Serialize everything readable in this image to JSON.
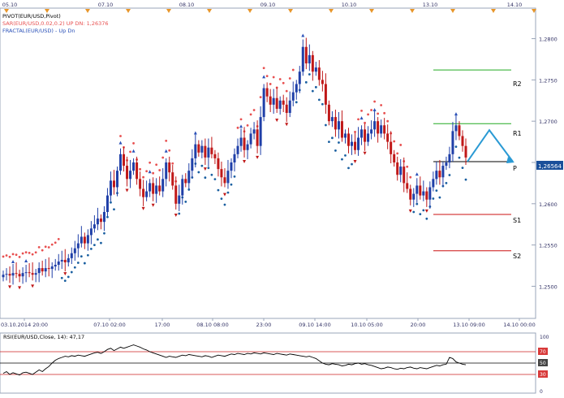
{
  "colors": {
    "up_candle": "#1f3fa8",
    "down_candle": "#c01818",
    "sar_up": "#1a5fa0",
    "sar_down": "#e85050",
    "fractal": "#2a50b8",
    "pivot_line": "#000000",
    "resistance": "#22aa22",
    "support": "#cc1111",
    "forecast_arrow": "#2a9ad4",
    "rsi_line": "#000000",
    "rsi_levels": "#cc2222",
    "axis_text": "#333366",
    "top_marker": "#e8962a",
    "price_tag_bg": "#1a4f9a"
  },
  "top_scale": {
    "labels": [
      "05.10",
      "07.10",
      "08.10",
      "09.10",
      "10.10",
      "13.10",
      "14.10"
    ]
  },
  "legend": {
    "line1": "PIVOT(EUR/USD,Pivot)",
    "line2": "SAR(EUR/USD,0.02,0.2)    UP  DN: 1,26376",
    "line3": "FRACTAL(EUR/USD) - Up  Dn"
  },
  "pivot_labels": {
    "r2": "R2",
    "r1": "R1",
    "p": "P",
    "s1": "S1",
    "s2": "S2"
  },
  "current_price": "1,26564",
  "rsi": {
    "legend": "RSI(EUR/USD,Close, 14): 47,17",
    "axis_labels": [
      "100",
      "70",
      "50",
      "30",
      "0"
    ]
  },
  "chart_data": [
    {
      "type": "candlestick",
      "title": "EUR/USD",
      "x_tick_labels": [
        "03.10.2014 20:00",
        "07.10 02:00",
        "17:00",
        "08.10 08:00",
        "23:00",
        "09.10 14:00",
        "10.10 05:00",
        "20:00",
        "13.10 09:00",
        "14.10 00:00"
      ],
      "y_tick_labels": [
        "1,2800",
        "1,2750",
        "1,2700",
        "1,2650",
        "1,2600",
        "1,2550",
        "1,2500"
      ],
      "ylim": [
        1.2465,
        1.2835
      ],
      "pivot_levels": {
        "R2": 1.2762,
        "R1": 1.2697,
        "P": 1.2651,
        "S1": 1.2587,
        "S2": 1.2543
      },
      "current_price": 1.26564,
      "closes": [
        1.2514,
        1.2515,
        1.2513,
        1.2516,
        1.2515,
        1.2512,
        1.2516,
        1.2517,
        1.2516,
        1.2514,
        1.2516,
        1.2522,
        1.2518,
        1.2522,
        1.2521,
        1.2524,
        1.2526,
        1.253,
        1.2532,
        1.2529,
        1.2534,
        1.254,
        1.2546,
        1.2552,
        1.256,
        1.2552,
        1.2562,
        1.257,
        1.2575,
        1.2582,
        1.2578,
        1.259,
        1.261,
        1.2628,
        1.262,
        1.264,
        1.266,
        1.2646,
        1.263,
        1.264,
        1.265,
        1.263,
        1.2618,
        1.2608,
        1.2615,
        1.2625,
        1.2612,
        1.2622,
        1.2615,
        1.263,
        1.265,
        1.2638,
        1.2622,
        1.26,
        1.261,
        1.263,
        1.2625,
        1.264,
        1.2655,
        1.2672,
        1.2662,
        1.267,
        1.2656,
        1.2668,
        1.266,
        1.2655,
        1.2642,
        1.2632,
        1.2625,
        1.264,
        1.265,
        1.266,
        1.267,
        1.268,
        1.2665,
        1.2672,
        1.2685,
        1.269,
        1.267,
        1.2705,
        1.274,
        1.273,
        1.272,
        1.2728,
        1.2715,
        1.2725,
        1.272,
        1.271,
        1.2725,
        1.2735,
        1.2745,
        1.276,
        1.279,
        1.277,
        1.278,
        1.276,
        1.2765,
        1.275,
        1.2745,
        1.272,
        1.27,
        1.2705,
        1.269,
        1.27,
        1.268,
        1.2685,
        1.267,
        1.2675,
        1.2665,
        1.268,
        1.269,
        1.2675,
        1.2685,
        1.269,
        1.27,
        1.2685,
        1.2695,
        1.2685,
        1.2675,
        1.266,
        1.265,
        1.2635,
        1.2645,
        1.2625,
        1.2618,
        1.2605,
        1.2612,
        1.2622,
        1.261,
        1.2615,
        1.2605,
        1.262,
        1.263,
        1.264,
        1.2632,
        1.2646,
        1.265,
        1.266,
        1.2688,
        1.2695,
        1.2682,
        1.267,
        1.2656
      ]
    },
    {
      "type": "line",
      "title": "RSI(EUR/USD,Close, 14): 47,17",
      "y_tick_labels": [
        "100",
        "70",
        "50",
        "30",
        "0"
      ],
      "ylim": [
        0,
        100
      ],
      "levels": [
        70,
        50,
        30
      ],
      "last_value": 47.17,
      "values": [
        32,
        35,
        30,
        33,
        31,
        29,
        33,
        34,
        32,
        30,
        34,
        38,
        35,
        40,
        44,
        50,
        55,
        58,
        60,
        62,
        61,
        63,
        62,
        64,
        63,
        62,
        64,
        66,
        68,
        69,
        67,
        70,
        74,
        76,
        72,
        75,
        78,
        76,
        78,
        80,
        82,
        80,
        78,
        75,
        73,
        70,
        68,
        66,
        64,
        62,
        60,
        62,
        61,
        60,
        62,
        64,
        63,
        65,
        64,
        63,
        62,
        61,
        63,
        62,
        60,
        62,
        64,
        63,
        62,
        64,
        66,
        65,
        67,
        66,
        65,
        67,
        66,
        68,
        67,
        66,
        68,
        67,
        66,
        65,
        67,
        66,
        65,
        64,
        66,
        65,
        64,
        63,
        62,
        61,
        62,
        60,
        58,
        54,
        50,
        48,
        47,
        49,
        48,
        47,
        45,
        46,
        48,
        47,
        49,
        50,
        48,
        49,
        47,
        46,
        44,
        42,
        40,
        41,
        43,
        42,
        40,
        39,
        41,
        40,
        42,
        43,
        41,
        40,
        42,
        41,
        40,
        42,
        44,
        46,
        45,
        47,
        48,
        60,
        58,
        52,
        50,
        48,
        47
      ]
    }
  ]
}
